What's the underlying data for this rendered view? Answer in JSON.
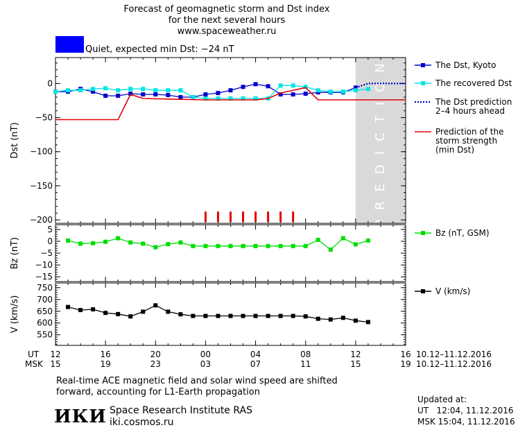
{
  "header": {
    "title_lines": [
      "Forecast of geomagnetic storm and Dst index",
      "for the next several hours",
      "www.spaceweather.ru"
    ],
    "status_color": "#0000ff",
    "status_text": "Quiet, expected min Dst: −24 nT"
  },
  "x_axis": {
    "ut_label": "UT",
    "msk_label": "MSK",
    "ut_ticks": [
      "12",
      "16",
      "20",
      "00",
      "04",
      "08",
      "12",
      "16"
    ],
    "msk_ticks": [
      "15",
      "19",
      "23",
      "03",
      "07",
      "11",
      "15",
      "19"
    ],
    "date_range": "10.12–11.12.2016"
  },
  "prediction_label": "PREDICTION",
  "chart_data": [
    {
      "type": "line",
      "ylabel": "Dst (nT)",
      "ylim": [
        -205,
        38
      ],
      "yticks": [
        "0",
        "−50",
        "−100",
        "−150",
        "−200"
      ],
      "ytick_values": [
        0,
        -50,
        -100,
        -150,
        -200
      ],
      "xlim_hours": [
        0,
        28
      ],
      "prediction_region_hours": [
        24,
        28
      ],
      "series": [
        {
          "name": "The Dst, Kyoto",
          "color": "#0000cc",
          "x": [
            0,
            1,
            2,
            3,
            4,
            5,
            6,
            7,
            8,
            9,
            10,
            11,
            12,
            13,
            14,
            15,
            16,
            17,
            18,
            19,
            20,
            21,
            22,
            23,
            24
          ],
          "y": [
            -12,
            -12,
            -8,
            -12,
            -18,
            -18,
            -15,
            -16,
            -16,
            -17,
            -20,
            -20,
            -16,
            -14,
            -10,
            -5,
            -1,
            -4,
            -16,
            -16,
            -15,
            -13,
            -13,
            -13,
            -6
          ]
        },
        {
          "name": "The recovered Dst",
          "color": "#00e5e5",
          "x": [
            0,
            1,
            2,
            3,
            4,
            5,
            6,
            7,
            8,
            9,
            10,
            11,
            12,
            13,
            14,
            15,
            16,
            17,
            18,
            19,
            20,
            21,
            22,
            23,
            24,
            25
          ],
          "y": [
            -12,
            -10,
            -10,
            -8,
            -7,
            -10,
            -8,
            -8,
            -10,
            -10,
            -10,
            -20,
            -22,
            -22,
            -22,
            -22,
            -22,
            -22,
            -3,
            -3,
            -5,
            -10,
            -12,
            -12,
            -10,
            -8
          ]
        },
        {
          "name": "The Dst prediction 2–4 hours ahead",
          "color": "#0000cc",
          "dashed": true,
          "x": [
            24,
            24.5,
            25,
            25.5,
            26,
            27,
            28
          ],
          "y": [
            -6,
            -3,
            0,
            0,
            0,
            0,
            0
          ]
        },
        {
          "name": "Prediction of the storm strength (min Dst)",
          "color": "#e00000",
          "step": true,
          "x": [
            0,
            5,
            6,
            7,
            12,
            16,
            17,
            18,
            20,
            21,
            28
          ],
          "y": [
            -53,
            -53,
            -16,
            -22,
            -24,
            -24,
            -22,
            -14,
            -6,
            -24,
            -24
          ]
        }
      ],
      "storm_markers_hours": [
        12,
        13,
        14,
        15,
        16,
        17,
        18,
        19
      ],
      "legend": [
        {
          "label_lines": [
            "The Dst, Kyoto"
          ],
          "color": "#0000cc",
          "style": "solid-square"
        },
        {
          "label_lines": [
            "The recovered Dst"
          ],
          "color": "#00e5e5",
          "style": "solid-square"
        },
        {
          "label_lines": [
            "The Dst prediction",
            "2–4 hours ahead"
          ],
          "color": "#0000cc",
          "style": "dotted"
        },
        {
          "label_lines": [
            "Prediction of the",
            "storm strength",
            "(min Dst)"
          ],
          "color": "#e00000",
          "style": "solid"
        }
      ]
    },
    {
      "type": "line",
      "ylabel": "Bz (nT)",
      "ylim": [
        -17,
        7
      ],
      "yticks": [
        "5",
        "0",
        "−5",
        "−10",
        "−15"
      ],
      "ytick_values": [
        5,
        0,
        -5,
        -10,
        -15
      ],
      "xlim_hours": [
        0,
        28
      ],
      "series": [
        {
          "name": "Bz (nT, GSM)",
          "color": "#00dd00",
          "x": [
            1,
            2,
            3,
            4,
            5,
            6,
            7,
            8,
            9,
            10,
            11,
            12,
            13,
            14,
            15,
            16,
            17,
            18,
            19,
            20,
            21,
            22,
            23,
            24,
            25
          ],
          "y": [
            0.3,
            -1,
            -0.8,
            -0.2,
            1.3,
            -0.5,
            -1,
            -2.5,
            -1.2,
            -0.5,
            -2,
            -2,
            -2,
            -2,
            -2,
            -2,
            -2,
            -2,
            -2,
            -2,
            0.6,
            -3.5,
            1.3,
            -1.3,
            0.3
          ]
        }
      ],
      "legend": [
        {
          "label_lines": [
            "Bz (nT, GSM)"
          ],
          "color": "#00dd00",
          "style": "solid-square"
        }
      ]
    },
    {
      "type": "line",
      "ylabel": "V (km/s)",
      "ylim": [
        505,
        770
      ],
      "yticks": [
        "750",
        "700",
        "650",
        "600",
        "550"
      ],
      "ytick_values": [
        750,
        700,
        650,
        600,
        550
      ],
      "xlim_hours": [
        0,
        28
      ],
      "series": [
        {
          "name": "V (km/s)",
          "color": "#000000",
          "x": [
            1,
            2,
            3,
            4,
            5,
            6,
            7,
            8,
            9,
            10,
            11,
            12,
            13,
            14,
            15,
            16,
            17,
            18,
            19,
            20,
            21,
            22,
            23,
            24,
            25
          ],
          "y": [
            668,
            655,
            658,
            643,
            638,
            628,
            648,
            675,
            648,
            637,
            630,
            630,
            630,
            630,
            630,
            630,
            630,
            630,
            630,
            628,
            618,
            615,
            622,
            610,
            604
          ]
        }
      ],
      "legend": [
        {
          "label_lines": [
            "V (km/s)"
          ],
          "color": "#000000",
          "style": "solid-square"
        }
      ]
    }
  ],
  "footer": {
    "note_line1": "Real-time ACE magnetic field and solar wind speed are shifted",
    "note_line2": "forward, accounting for L1-Earth propagation",
    "logo_text": "ИКИ",
    "institute": "Space Research Institute RAS",
    "site": "iki.cosmos.ru",
    "updated_label": "Updated at:",
    "updated_ut": "UT   12:04, 11.12.2016",
    "updated_msk": "MSK 15:04, 11.12.2016"
  }
}
